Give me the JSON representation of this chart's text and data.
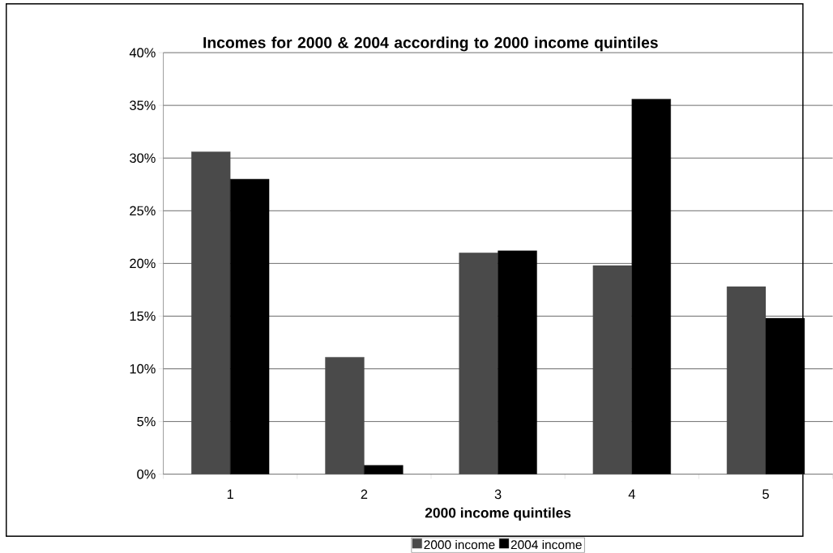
{
  "chart_data": {
    "type": "bar",
    "title": "Incomes for 2000 & 2004 according to 2000 income quintiles",
    "xlabel": "2000 income quintiles",
    "categories": [
      "1",
      "2",
      "3",
      "4",
      "5"
    ],
    "series": [
      {
        "name": "2000 income",
        "color": "#4a4a4a",
        "values": [
          30.6,
          11.1,
          21.0,
          19.8,
          17.8
        ]
      },
      {
        "name": "2004 income",
        "color": "#000000",
        "values": [
          28.0,
          0.85,
          21.2,
          35.6,
          14.8
        ]
      }
    ],
    "ylim": [
      0,
      40
    ],
    "yticks": [
      {
        "value": 0,
        "label": "0%"
      },
      {
        "value": 5,
        "label": "5%"
      },
      {
        "value": 10,
        "label": "10%"
      },
      {
        "value": 15,
        "label": "15%"
      },
      {
        "value": 20,
        "label": "20%"
      },
      {
        "value": 25,
        "label": "25%"
      },
      {
        "value": 30,
        "label": "30%"
      },
      {
        "value": 35,
        "label": "35%"
      },
      {
        "value": 40,
        "label": "40%"
      }
    ],
    "grid": "y",
    "legend": "bottom"
  }
}
